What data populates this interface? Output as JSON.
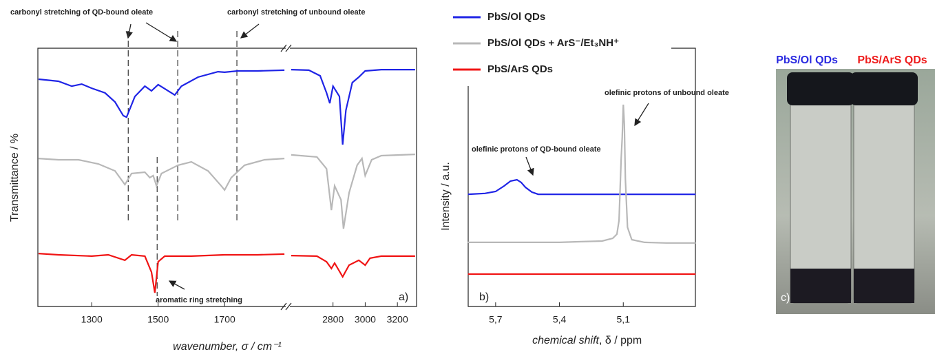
{
  "chart_data": [
    {
      "type": "line",
      "y_label": "Transmittance / %",
      "x_label": "wavenumber, σ / cm⁻¹",
      "panel_label": "a)",
      "xlim": [
        1138,
        3319
      ],
      "xbreak": [
        1884,
        2532
      ],
      "xticks": [
        1300,
        1500,
        1700,
        2800,
        3000,
        3200
      ],
      "ylim": [
        0,
        100
      ],
      "reference_lines": [
        1410,
        1559,
        1737,
        1497
      ],
      "annotations": [
        "carbonyl stretching of QD-bound oleate",
        "carbonyl stretching of unbound oleate",
        "aromatic ring stretching"
      ],
      "series": [
        {
          "color": "#1f24e6",
          "x": [
            1140,
            1200,
            1240,
            1270,
            1300,
            1340,
            1370,
            1395,
            1405,
            1430,
            1460,
            1480,
            1500,
            1530,
            1550,
            1570,
            1620,
            1680,
            1700,
            1740,
            1800,
            1880,
            2540,
            2650,
            2720,
            2760,
            2780,
            2800,
            2840,
            2860,
            2880,
            2920,
            2960,
            3000,
            3100,
            3310
          ],
          "values": [
            88.0,
            87.2,
            85.3,
            86.1,
            84.5,
            82.7,
            79.2,
            73.9,
            73.3,
            81.3,
            85.3,
            83.5,
            85.9,
            83.5,
            81.9,
            85.3,
            88.8,
            90.9,
            90.7,
            91.2,
            91.2,
            91.5,
            91.7,
            91.5,
            89.3,
            82.7,
            78.7,
            85.3,
            81.3,
            62.7,
            76.0,
            86.7,
            88.8,
            91.2,
            91.7,
            91.7
          ]
        },
        {
          "color": "#b8b8b8",
          "x": [
            1140,
            1200,
            1260,
            1320,
            1370,
            1400,
            1420,
            1460,
            1475,
            1485,
            1495,
            1510,
            1560,
            1600,
            1650,
            1690,
            1700,
            1720,
            1760,
            1820,
            1880,
            2540,
            2700,
            2760,
            2790,
            2810,
            2850,
            2865,
            2900,
            2950,
            2980,
            3000,
            3040,
            3100,
            3310
          ],
          "values": [
            57.3,
            56.8,
            56.8,
            55.2,
            52.5,
            47.2,
            51.5,
            52.0,
            49.9,
            50.7,
            46.7,
            51.5,
            54.7,
            56.0,
            52.5,
            46.7,
            45.1,
            49.9,
            54.7,
            56.8,
            57.3,
            58.7,
            57.9,
            53.3,
            37.3,
            46.7,
            41.3,
            30.1,
            44.0,
            54.7,
            57.3,
            50.7,
            56.8,
            58.4,
            58.9
          ]
        },
        {
          "color": "#f01414",
          "x": [
            1140,
            1200,
            1300,
            1350,
            1400,
            1420,
            1460,
            1480,
            1490,
            1500,
            1520,
            1600,
            1700,
            1800,
            1880,
            2540,
            2700,
            2760,
            2790,
            2810,
            2860,
            2900,
            2960,
            3000,
            3030,
            3100,
            3310
          ],
          "values": [
            20.5,
            20.0,
            19.5,
            20.0,
            17.9,
            20.0,
            19.5,
            13.3,
            5.3,
            17.3,
            19.5,
            19.5,
            20.0,
            20.0,
            20.3,
            19.7,
            19.5,
            17.3,
            14.7,
            16.8,
            11.5,
            16.0,
            17.9,
            16.0,
            18.7,
            19.5,
            19.5
          ]
        }
      ]
    },
    {
      "type": "line",
      "y_label": "Intensity / a.u.",
      "x_label_italic": "chemical shift",
      "x_label_rest": ", δ / ppm",
      "panel_label": "b)",
      "xlim": [
        5.829,
        4.761
      ],
      "xticks": [
        {
          "value": 5.7,
          "label": "5,7"
        },
        {
          "value": 5.4,
          "label": "5,4"
        },
        {
          "value": 5.1,
          "label": "5,1"
        }
      ],
      "ylim": [
        0,
        100
      ],
      "annotations": [
        "olefinic protons of unbound oleate",
        "olefinic protons of QD-bound oleate"
      ],
      "series": [
        {
          "name": "PbS/Ol QDs",
          "color": "#1f24e6",
          "x": [
            5.83,
            5.75,
            5.7,
            5.66,
            5.63,
            5.6,
            5.58,
            5.56,
            5.53,
            5.5,
            5.3,
            5.0,
            4.76
          ],
          "values": [
            50.9,
            51.3,
            52.2,
            54.7,
            56.9,
            57.5,
            56.3,
            54.1,
            51.9,
            50.9,
            50.9,
            50.9,
            50.9
          ]
        },
        {
          "name": "PbS/Ol QDs + ArS⁻/Et₃NH⁺",
          "color": "#b8b8b8",
          "x": [
            5.83,
            5.6,
            5.4,
            5.3,
            5.2,
            5.15,
            5.13,
            5.12,
            5.11,
            5.105,
            5.1,
            5.095,
            5.09,
            5.08,
            5.06,
            5.0,
            4.9,
            4.76
          ],
          "values": [
            29.1,
            29.1,
            29.1,
            29.4,
            29.7,
            30.9,
            32.8,
            39.1,
            67.2,
            76.6,
            91.6,
            82.8,
            57.8,
            35.9,
            30.3,
            29.1,
            28.8,
            28.8
          ]
        },
        {
          "name": "PbS/ArS QDs",
          "color": "#f01414",
          "x": [
            5.83,
            5.5,
            5.2,
            4.76
          ],
          "values": [
            14.7,
            14.7,
            14.7,
            14.7
          ]
        }
      ]
    }
  ],
  "photo": {
    "labels": [
      "PbS/Ol QDs",
      "PbS/ArS QDs"
    ],
    "panel_label": "c)"
  }
}
